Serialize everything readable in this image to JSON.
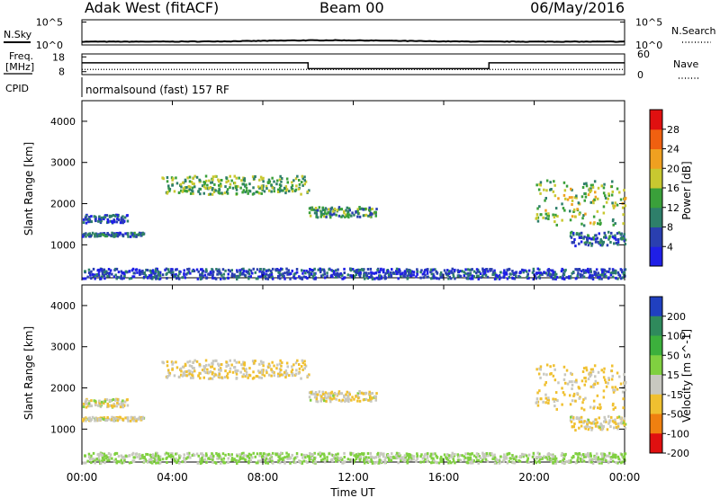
{
  "header": {
    "station": "Adak West (fitACF)",
    "beam": "Beam 00",
    "date": "06/May/2016"
  },
  "noise_panel": {
    "left_label": "N.Sky",
    "right_label": "N.Search",
    "left_ticks": [
      "10^5",
      "10^0"
    ],
    "right_ticks": [
      "10^5",
      "10^0"
    ],
    "left_ticks_pos": [
      5,
      0
    ],
    "right_ticks_pos": [
      5,
      0
    ]
  },
  "freq_panel": {
    "left_label_1": "Freq.",
    "left_label_2": "[MHz]",
    "right_label": "Nave",
    "left_ticks": [
      "18",
      "8"
    ],
    "right_ticks": [
      "60",
      "0"
    ],
    "left_ticks_pos": [
      18,
      8
    ],
    "right_ticks_pos": [
      60,
      0
    ]
  },
  "cpid": {
    "label": "CPID",
    "text": "normalsound (fast) 157 RF"
  },
  "x_axis": {
    "label": "Time UT",
    "ticks": [
      "00:00",
      "04:00",
      "08:00",
      "12:00",
      "16:00",
      "20:00",
      "00:00"
    ],
    "tick_hours": [
      0,
      4,
      8,
      12,
      16,
      20,
      24
    ]
  },
  "panels": [
    {
      "ylabel": "Slant Range [km]",
      "yticks": [
        "1000",
        "2000",
        "3000",
        "4000"
      ],
      "ytick_values": [
        1000,
        2000,
        3000,
        4000
      ],
      "colorbar_label": "Power [dB]",
      "colorbar_ticks": [
        "4",
        "8",
        "12",
        "16",
        "20",
        "24",
        "28"
      ],
      "colorbar_tick_values": [
        4,
        8,
        12,
        16,
        20,
        24,
        28
      ],
      "colorbar_colors": [
        "#1f1fe6",
        "#2a3fb0",
        "#2e7f6a",
        "#3aa03a",
        "#c8c830",
        "#f0a020",
        "#f06010",
        "#e01010"
      ]
    },
    {
      "ylabel": "Slant Range [km]",
      "yticks": [
        "1000",
        "2000",
        "3000",
        "4000"
      ],
      "ytick_values": [
        1000,
        2000,
        3000,
        4000
      ],
      "colorbar_label": "Velocity [m s^-1]",
      "colorbar_ticks": [
        "200",
        "100",
        "50",
        "15",
        "-15",
        "-50",
        "-100",
        "-200"
      ],
      "colorbar_tick_values": [
        200,
        100,
        50,
        15,
        -15,
        -50,
        -100,
        -200
      ],
      "colorbar_colors": [
        "#2040c0",
        "#2f8a5c",
        "#3cb03c",
        "#80d040",
        "#c8c8c0",
        "#f0c030",
        "#f08010",
        "#e01010"
      ]
    }
  ],
  "chart_data": {
    "type": "heatmap",
    "x_range_hours": [
      0,
      24
    ],
    "y_range_km": [
      200,
      4500
    ],
    "frequency_mhz": [
      {
        "from_hour": 0,
        "to_hour": 10,
        "value": 14
      },
      {
        "from_hour": 10,
        "to_hour": 18,
        "value": 10
      },
      {
        "from_hour": 18,
        "to_hour": 24,
        "value": 14
      }
    ],
    "nave_approx": 15,
    "echo_regions": [
      {
        "t_start": 0.0,
        "t_end": 2.7,
        "range_start_km": 1230,
        "range_end_km": 1320,
        "power_db": 8,
        "velocity": -10
      },
      {
        "t_start": 0.0,
        "t_end": 2.0,
        "range_start_km": 1560,
        "range_end_km": 1760,
        "power_db": 6,
        "velocity": -5
      },
      {
        "t_start": 3.5,
        "t_end": 10.0,
        "range_start_km": 2250,
        "range_end_km": 2700,
        "power_db": 14,
        "velocity": -15
      },
      {
        "t_start": 10.0,
        "t_end": 13.0,
        "range_start_km": 1700,
        "range_end_km": 1950,
        "power_db": 12,
        "velocity": -10
      },
      {
        "t_start": 20.0,
        "t_end": 24.0,
        "range_start_km": 1500,
        "range_end_km": 2600,
        "power_db": 16,
        "velocity": -20
      },
      {
        "t_start": 21.5,
        "t_end": 24.0,
        "range_start_km": 1000,
        "range_end_km": 1350,
        "power_db": 8,
        "velocity": -10
      },
      {
        "t_start": 0.0,
        "t_end": 24.0,
        "range_start_km": 200,
        "range_end_km": 450,
        "power_db": 6,
        "velocity": 20
      }
    ]
  }
}
